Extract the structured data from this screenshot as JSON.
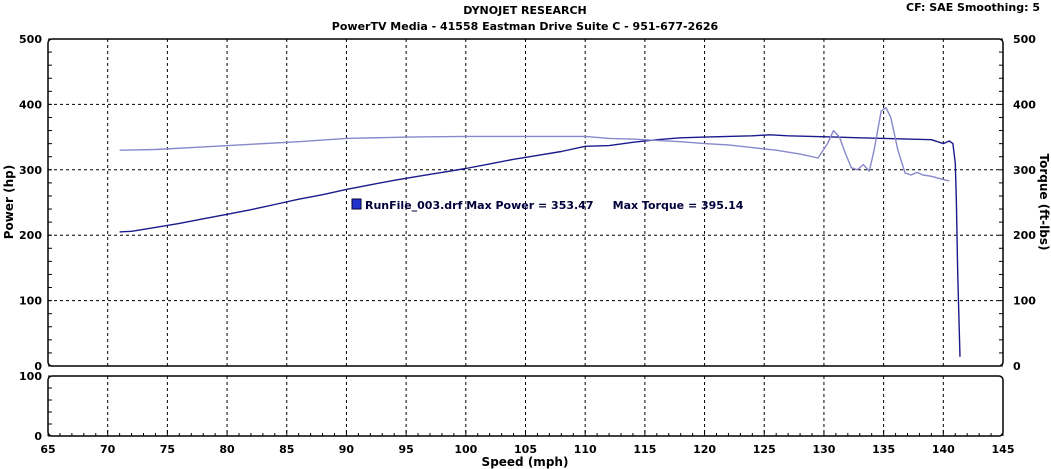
{
  "header": {
    "line1": "DYNOJET RESEARCH",
    "line2": "PowerTV Media - 41558 Eastman Drive Suite C - 951-677-2626",
    "info": "CF: SAE  Smoothing: 5"
  },
  "chart_data": {
    "type": "line",
    "xlabel": "Speed (mph)",
    "ylabel_left": "Power (hp)",
    "ylabel_right": "Torque (ft-lbs)",
    "xlim": [
      65,
      145
    ],
    "x_ticks": [
      "65",
      "70",
      "75",
      "80",
      "85",
      "90",
      "95",
      "100",
      "105",
      "110",
      "115",
      "120",
      "125",
      "130",
      "135",
      "140",
      "145"
    ],
    "ylim": [
      0,
      500
    ],
    "y_ticks": [
      "0",
      "100",
      "200",
      "300",
      "400",
      "500"
    ],
    "right_ticks": [
      "0",
      "100",
      "200",
      "300",
      "400",
      "500"
    ],
    "lower_panel": {
      "ylim": [
        0,
        100
      ],
      "y_ticks": [
        "0",
        "100"
      ]
    },
    "grid": true,
    "legend": {
      "text": "RunFile_003.drf Max Power = 353.47     Max Torque = 395.14",
      "placement": "center-left"
    },
    "series": [
      {
        "color": "#1a1a8c",
        "axis": "left",
        "points": [
          [
            71,
            205
          ],
          [
            72,
            206
          ],
          [
            74,
            212
          ],
          [
            76,
            218
          ],
          [
            78,
            225
          ],
          [
            80,
            232
          ],
          [
            82,
            239
          ],
          [
            84,
            247
          ],
          [
            86,
            255
          ],
          [
            88,
            262
          ],
          [
            90,
            270
          ],
          [
            92,
            277
          ],
          [
            94,
            284
          ],
          [
            96,
            290
          ],
          [
            98,
            296
          ],
          [
            100,
            302
          ],
          [
            102,
            309
          ],
          [
            104,
            316
          ],
          [
            106,
            322
          ],
          [
            108,
            328
          ],
          [
            110,
            336
          ],
          [
            112,
            337
          ],
          [
            114,
            342
          ],
          [
            116,
            346
          ],
          [
            118,
            349
          ],
          [
            120,
            350
          ],
          [
            122,
            351
          ],
          [
            124,
            352
          ],
          [
            125.5,
            353.5
          ],
          [
            127,
            352
          ],
          [
            129,
            351
          ],
          [
            131,
            350
          ],
          [
            133,
            349
          ],
          [
            135,
            348
          ],
          [
            137,
            347
          ],
          [
            139,
            346
          ],
          [
            140,
            340
          ],
          [
            140.5,
            344
          ],
          [
            140.8,
            340
          ],
          [
            141,
            310
          ],
          [
            141.1,
            250
          ],
          [
            141.2,
            150
          ],
          [
            141.3,
            80
          ],
          [
            141.4,
            14
          ]
        ]
      },
      {
        "color": "#8888cc",
        "axis": "right",
        "points": [
          [
            71,
            330
          ],
          [
            74,
            331
          ],
          [
            78,
            335
          ],
          [
            82,
            339
          ],
          [
            86,
            343
          ],
          [
            90,
            348
          ],
          [
            95,
            350
          ],
          [
            100,
            351
          ],
          [
            105,
            351
          ],
          [
            110,
            351
          ],
          [
            112,
            348
          ],
          [
            114,
            347
          ],
          [
            116,
            345
          ],
          [
            118,
            343
          ],
          [
            120,
            340
          ],
          [
            122,
            338
          ],
          [
            124,
            334
          ],
          [
            126,
            330
          ],
          [
            128,
            324
          ],
          [
            129.5,
            318
          ],
          [
            130.3,
            340
          ],
          [
            130.8,
            360
          ],
          [
            131.3,
            350
          ],
          [
            131.8,
            325
          ],
          [
            132.3,
            303
          ],
          [
            132.8,
            300
          ],
          [
            133.3,
            308
          ],
          [
            133.8,
            298
          ],
          [
            134.2,
            330
          ],
          [
            134.8,
            390
          ],
          [
            135.2,
            395
          ],
          [
            135.6,
            380
          ],
          [
            136.2,
            330
          ],
          [
            136.8,
            295
          ],
          [
            137.3,
            292
          ],
          [
            137.8,
            296
          ],
          [
            138.3,
            292
          ],
          [
            139,
            290
          ],
          [
            140,
            285
          ],
          [
            140.5,
            283
          ]
        ]
      }
    ]
  }
}
